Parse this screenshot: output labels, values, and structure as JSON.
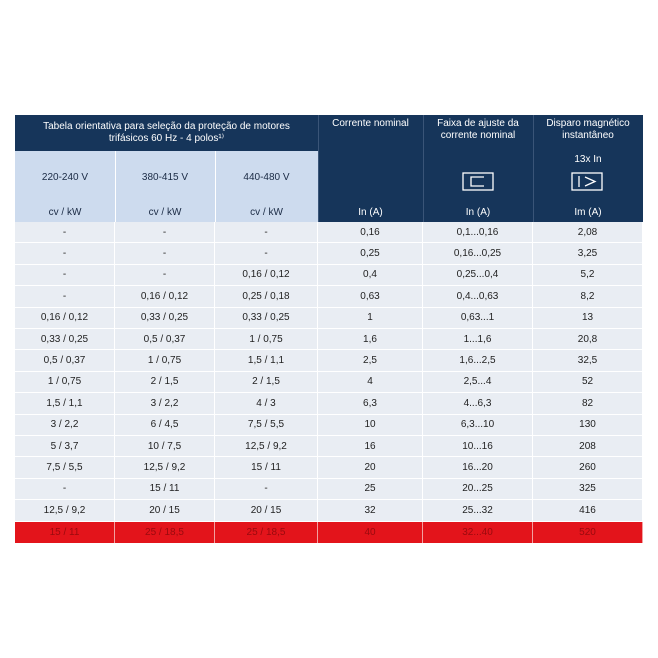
{
  "table": {
    "title": "Tabela orientativa para seleção da proteção de motores trifásicos 60 Hz - 4 polos¹⁾",
    "columns": [
      {
        "heading": "220-240 V",
        "unit": "cv / kW"
      },
      {
        "heading": "380-415 V",
        "unit": "cv / kW"
      },
      {
        "heading": "440-480 V",
        "unit": "cv / kW"
      },
      {
        "heading": "Corrente nominal",
        "unit": "In (A)"
      },
      {
        "heading": "Faixa de ajuste da corrente nominal",
        "unit": "In (A)"
      },
      {
        "heading": "Disparo magnético instantâneo",
        "subheading": "13x In",
        "unit": "Im (A)"
      }
    ],
    "rows": [
      [
        "-",
        "-",
        "-",
        "0,16",
        "0,1...0,16",
        "2,08"
      ],
      [
        "-",
        "-",
        "-",
        "0,25",
        "0,16...0,25",
        "3,25"
      ],
      [
        "-",
        "-",
        "0,16 / 0,12",
        "0,4",
        "0,25...0,4",
        "5,2"
      ],
      [
        "-",
        "0,16 / 0,12",
        "0,25 / 0,18",
        "0,63",
        "0,4...0,63",
        "8,2"
      ],
      [
        "0,16 / 0,12",
        "0,33 / 0,25",
        "0,33 / 0,25",
        "1",
        "0,63...1",
        "13"
      ],
      [
        "0,33 / 0,25",
        "0,5 / 0,37",
        "1 / 0,75",
        "1,6",
        "1...1,6",
        "20,8"
      ],
      [
        "0,5 / 0,37",
        "1 / 0,75",
        "1,5 / 1,1",
        "2,5",
        "1,6...2,5",
        "32,5"
      ],
      [
        "1 / 0,75",
        "2 / 1,5",
        "2 / 1,5",
        "4",
        "2,5...4",
        "52"
      ],
      [
        "1,5 / 1,1",
        "3 / 2,2",
        "4 / 3",
        "6,3",
        "4...6,3",
        "82"
      ],
      [
        "3 / 2,2",
        "6 / 4,5",
        "7,5 / 5,5",
        "10",
        "6,3...10",
        "130"
      ],
      [
        "5 / 3,7",
        "10 / 7,5",
        "12,5 / 9,2",
        "16",
        "10...16",
        "208"
      ],
      [
        "7,5 / 5,5",
        "12,5 / 9,2",
        "15 / 11",
        "20",
        "16...20",
        "260"
      ],
      [
        "-",
        "15 / 11",
        "-",
        "25",
        "20...25",
        "325"
      ],
      [
        "12,5 / 9,2",
        "20 / 15",
        "20 / 15",
        "32",
        "25...32",
        "416"
      ],
      [
        "15 / 11",
        "25 / 18,5",
        "25 / 18,5",
        "40",
        "32...40",
        "520"
      ]
    ]
  }
}
